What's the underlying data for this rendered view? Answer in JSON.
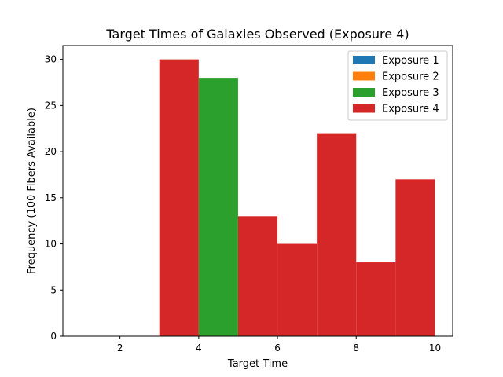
{
  "chart_data": {
    "type": "bar",
    "title": "Target Times of Galaxies Observed (Exposure 4)",
    "xlabel": "Target Time",
    "ylabel": "Frequency (100 Fibers Available)",
    "xlim": [
      0.55,
      10.45
    ],
    "ylim": [
      0,
      31.5
    ],
    "xticks": [
      2,
      4,
      6,
      8,
      10
    ],
    "yticks": [
      0,
      5,
      10,
      15,
      20,
      25,
      30
    ],
    "grid": false,
    "legend_position": "top-right",
    "series": [
      {
        "name": "Exposure 1",
        "color": "#1f77b4",
        "bins": []
      },
      {
        "name": "Exposure 2",
        "color": "#ff7f0e",
        "bins": []
      },
      {
        "name": "Exposure 3",
        "color": "#2ca02c",
        "bins": [
          {
            "x0": 4,
            "x1": 5,
            "value": 28
          }
        ]
      },
      {
        "name": "Exposure 4",
        "color": "#d62728",
        "bins": [
          {
            "x0": 3,
            "x1": 4,
            "value": 30
          },
          {
            "x0": 5,
            "x1": 6,
            "value": 13
          },
          {
            "x0": 6,
            "x1": 7,
            "value": 10
          },
          {
            "x0": 7,
            "x1": 8,
            "value": 22
          },
          {
            "x0": 8,
            "x1": 9,
            "value": 8
          },
          {
            "x0": 9,
            "x1": 10,
            "value": 17
          }
        ]
      }
    ]
  }
}
